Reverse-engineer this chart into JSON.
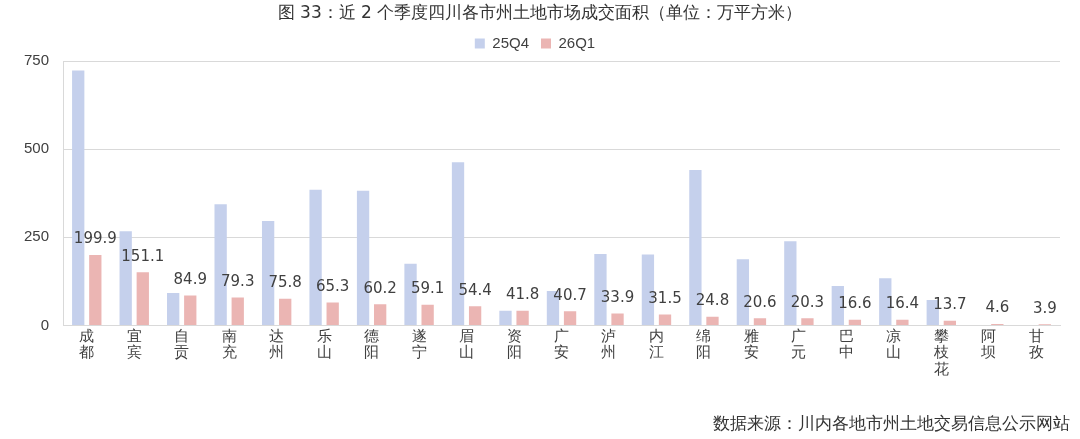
{
  "chart_data": {
    "type": "bar",
    "title": "图 33：近 2 个季度四川各市州土地市场成交面积（单位：万平方米）",
    "categories": [
      "成都",
      "宜宾",
      "自贡",
      "南充",
      "达州",
      "乐山",
      "德阳",
      "遂宁",
      "眉山",
      "资阳",
      "广安",
      "泸州",
      "内江",
      "绵阳",
      "雅安",
      "广元",
      "巴中",
      "凉山",
      "攀枝花",
      "阿坝",
      "甘孜"
    ],
    "series": [
      {
        "name": "25Q4",
        "color": "#c5d0ec",
        "values": [
          723,
          267,
          92,
          344,
          296,
          385,
          382,
          175,
          463,
          42,
          98,
          203,
          201,
          441,
          188,
          239,
          112,
          134,
          72,
          null,
          null
        ]
      },
      {
        "name": "26Q1",
        "color": "#ebb5b3",
        "values": [
          199.9,
          151.1,
          84.9,
          79.3,
          75.8,
          65.3,
          60.2,
          59.1,
          54.4,
          41.8,
          40.7,
          33.9,
          31.5,
          24.8,
          20.6,
          20.3,
          16.6,
          16.4,
          13.7,
          4.6,
          3.9
        ],
        "value_labels": [
          "199.9",
          "151.1",
          "84.9",
          "79.3",
          "75.8",
          "65.3",
          "60.2",
          "59.1",
          "54.4",
          "41.8",
          "40.7",
          "33.9",
          "31.5",
          "24.8",
          "20.6",
          "20.3",
          "16.6",
          "16.4",
          "13.7",
          "4.6",
          "3.9"
        ]
      }
    ],
    "ylim": [
      0,
      750
    ],
    "yticks": [
      0,
      250,
      500,
      750
    ],
    "grid": "y",
    "legend": "top",
    "annotations": [
      "数据来源：川内各地市州土地交易信息公示网站"
    ]
  }
}
